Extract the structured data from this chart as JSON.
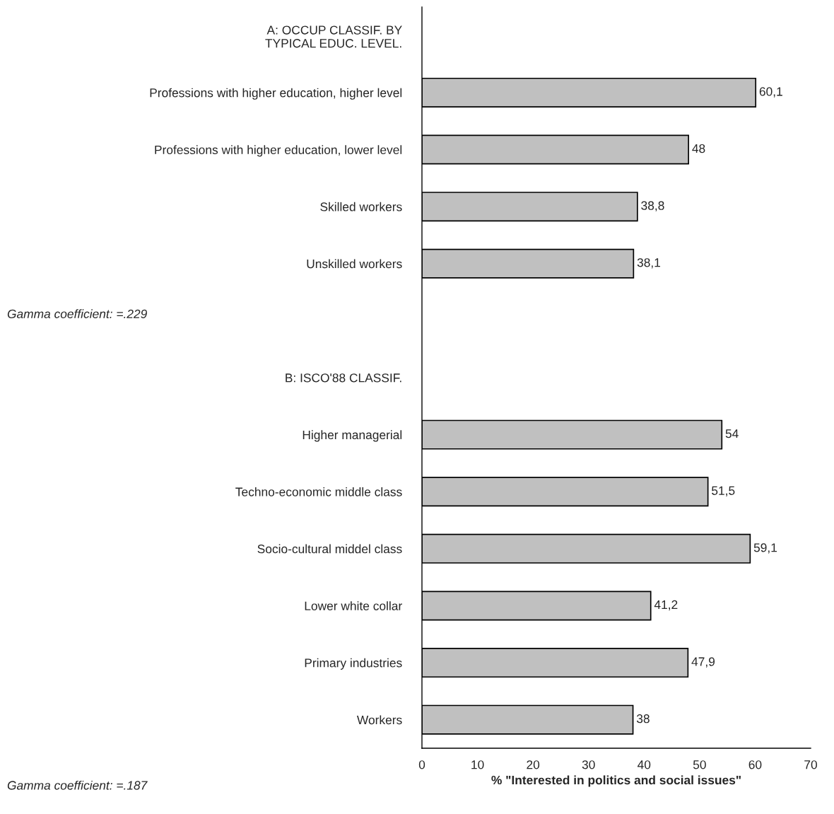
{
  "chart_data": {
    "type": "bar",
    "orientation": "horizontal",
    "xlabel": "% \"Interested in politics and social issues\"",
    "categories": [
      "A: OCCUP CLASSIF. BY\nTYPICAL EDUC. LEVEL.",
      "Professions with higher education, higher level",
      "Professions with higher education, lower level",
      "Skilled workers",
      "Unskilled workers",
      null,
      "B: ISCO'88 CLASSIF.",
      "Higher managerial",
      "Techno-economic middle class",
      "Socio-cultural middel class",
      "Lower white collar",
      "Primary industries",
      "Workers"
    ],
    "values": [
      null,
      60.1,
      48,
      38.8,
      38.1,
      null,
      null,
      54,
      51.5,
      59.1,
      41.2,
      47.9,
      38
    ],
    "value_labels": [
      null,
      "60,1",
      "48",
      "38,8",
      "38,1",
      null,
      null,
      "54",
      "51,5",
      "59,1",
      "41,2",
      "47,9",
      "38"
    ],
    "color": "#c0c0c0",
    "xlim": [
      0,
      70
    ],
    "xticks": [
      0,
      10,
      20,
      30,
      40,
      50,
      60,
      70
    ],
    "grid": false,
    "legend": false,
    "annotations": [
      "Gamma coefficient: =.229",
      "Gamma coefficient: =.187"
    ]
  }
}
